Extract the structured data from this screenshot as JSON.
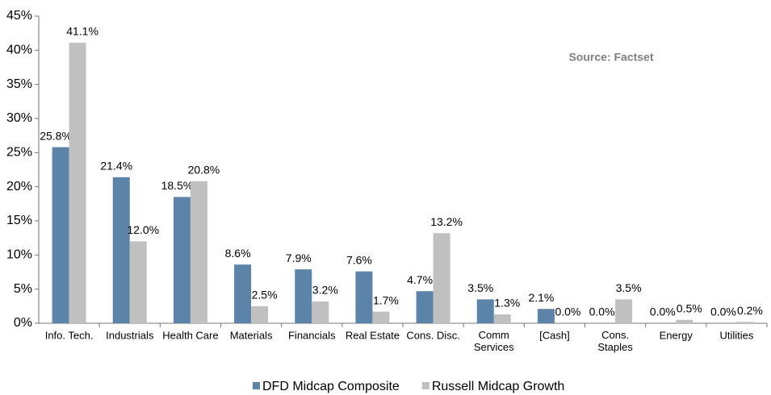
{
  "chart_data": {
    "type": "bar",
    "annotation": "Source: Factset",
    "categories": [
      "Info. Tech.",
      "Industrials",
      "Health Care",
      "Materials",
      "Financials",
      "Real Estate",
      "Cons. Disc.",
      "Comm Services",
      "[Cash]",
      "Cons. Staples",
      "Energy",
      "Utilities"
    ],
    "series": [
      {
        "name": "DFD Midcap Composite",
        "color": "#5b84a8",
        "values": [
          25.8,
          21.4,
          18.5,
          8.6,
          7.9,
          7.6,
          4.7,
          3.5,
          2.1,
          0.0,
          0.0,
          0.0
        ],
        "value_labels": [
          "25.8%",
          "21.4%",
          "18.5%",
          "8.6%",
          "7.9%",
          "7.6%",
          "4.7%",
          "3.5%",
          "2.1%",
          "0.0%",
          "0.0%",
          "0.0%"
        ]
      },
      {
        "name": "Russell Midcap Growth",
        "color": "#c0c0c0",
        "values": [
          41.1,
          12.0,
          20.8,
          2.5,
          3.2,
          1.7,
          13.2,
          1.3,
          0.0,
          3.5,
          0.5,
          0.2
        ],
        "value_labels": [
          "41.1%",
          "12.0%",
          "20.8%",
          "2.5%",
          "3.2%",
          "1.7%",
          "13.2%",
          "1.3%",
          "0.0%",
          "3.5%",
          "0.5%",
          "0.2%"
        ]
      }
    ],
    "ylim": [
      0,
      45
    ],
    "yticks": [
      {
        "value": 0,
        "label": "0%"
      },
      {
        "value": 5,
        "label": "5%"
      },
      {
        "value": 10,
        "label": "10%"
      },
      {
        "value": 15,
        "label": "15%"
      },
      {
        "value": 20,
        "label": "20%"
      },
      {
        "value": 25,
        "label": "25%"
      },
      {
        "value": 30,
        "label": "30%"
      },
      {
        "value": 35,
        "label": "35%"
      },
      {
        "value": 40,
        "label": "40%"
      },
      {
        "value": 45,
        "label": "45%"
      }
    ],
    "grid": false,
    "legend": "bottom"
  }
}
